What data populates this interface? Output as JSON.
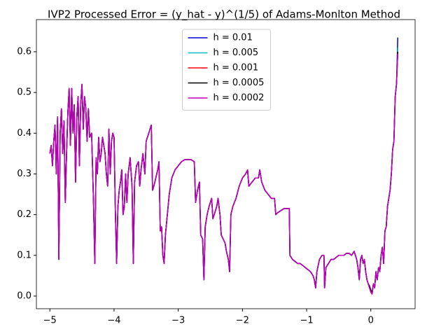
{
  "chart_data": {
    "type": "line",
    "title": "IVP2 Processed Error = (y_hat - y)^(1/5) of Adams-Monlton Method",
    "x": [
      -5.0,
      -4.98,
      -4.96,
      -4.94,
      -4.92,
      -4.9,
      -4.88,
      -4.86,
      -4.84,
      -4.82,
      -4.8,
      -4.78,
      -4.76,
      -4.74,
      -4.72,
      -4.7,
      -4.68,
      -4.66,
      -4.64,
      -4.62,
      -4.6,
      -4.58,
      -4.56,
      -4.54,
      -4.52,
      -4.5,
      -4.48,
      -4.46,
      -4.44,
      -4.42,
      -4.4,
      -4.38,
      -4.35,
      -4.32,
      -4.3,
      -4.28,
      -4.26,
      -4.24,
      -4.22,
      -4.2,
      -4.18,
      -4.16,
      -4.14,
      -4.12,
      -4.1,
      -4.08,
      -4.06,
      -4.04,
      -4.02,
      -4.0,
      -3.98,
      -3.96,
      -3.94,
      -3.92,
      -3.9,
      -3.88,
      -3.86,
      -3.84,
      -3.82,
      -3.8,
      -3.78,
      -3.75,
      -3.72,
      -3.7,
      -3.68,
      -3.65,
      -3.62,
      -3.6,
      -3.58,
      -3.55,
      -3.52,
      -3.5,
      -3.46,
      -3.42,
      -3.4,
      -3.38,
      -3.35,
      -3.32,
      -3.3,
      -3.28,
      -3.26,
      -3.24,
      -3.22,
      -3.2,
      -3.17,
      -3.14,
      -3.1,
      -3.05,
      -3.0,
      -2.95,
      -2.9,
      -2.8,
      -2.75,
      -2.73,
      -2.7,
      -2.67,
      -2.65,
      -2.62,
      -2.6,
      -2.58,
      -2.55,
      -2.52,
      -2.48,
      -2.46,
      -2.44,
      -2.4,
      -2.38,
      -2.35,
      -2.33,
      -2.3,
      -2.27,
      -2.25,
      -2.22,
      -2.2,
      -2.18,
      -2.15,
      -2.1,
      -2.05,
      -2.0,
      -1.95,
      -1.92,
      -1.9,
      -1.85,
      -1.8,
      -1.75,
      -1.73,
      -1.7,
      -1.65,
      -1.6,
      -1.55,
      -1.5,
      -1.48,
      -1.45,
      -1.4,
      -1.35,
      -1.3,
      -1.27,
      -1.26,
      -1.22,
      -1.18,
      -1.14,
      -1.1,
      -1.06,
      -1.02,
      -0.98,
      -0.94,
      -0.9,
      -0.88,
      -0.86,
      -0.84,
      -0.8,
      -0.76,
      -0.73,
      -0.72,
      -0.7,
      -0.66,
      -0.62,
      -0.58,
      -0.54,
      -0.5,
      -0.46,
      -0.42,
      -0.38,
      -0.34,
      -0.3,
      -0.26,
      -0.22,
      -0.2,
      -0.18,
      -0.16,
      -0.14,
      -0.12,
      -0.1,
      -0.08,
      -0.06,
      -0.04,
      -0.02,
      0.0,
      0.02,
      0.04,
      0.06,
      0.08,
      0.1,
      0.12,
      0.14,
      0.16,
      0.18,
      0.2,
      0.22,
      0.24,
      0.26,
      0.28,
      0.3,
      0.32,
      0.34,
      0.36,
      0.38,
      0.4,
      0.42
    ],
    "series": [
      {
        "name": "h = 0.01",
        "color": "#0000cc",
        "values": [
          0.35,
          0.37,
          0.32,
          0.38,
          0.42,
          0.3,
          0.44,
          0.09,
          0.4,
          0.46,
          0.35,
          0.43,
          0.23,
          0.35,
          0.45,
          0.51,
          0.37,
          0.51,
          0.4,
          0.47,
          0.28,
          0.44,
          0.49,
          0.32,
          0.47,
          0.52,
          0.41,
          0.49,
          0.46,
          0.38,
          0.46,
          0.39,
          0.4,
          0.23,
          0.08,
          0.34,
          0.3,
          0.39,
          0.33,
          0.35,
          0.39,
          0.37,
          0.35,
          0.3,
          0.27,
          0.41,
          0.3,
          0.38,
          0.4,
          0.39,
          0.21,
          0.08,
          0.22,
          0.26,
          0.28,
          0.31,
          0.2,
          0.22,
          0.3,
          0.23,
          0.3,
          0.34,
          0.27,
          0.08,
          0.28,
          0.32,
          0.33,
          0.27,
          0.31,
          0.35,
          0.3,
          0.38,
          0.4,
          0.42,
          0.26,
          0.27,
          0.29,
          0.31,
          0.33,
          0.16,
          0.17,
          0.1,
          0.08,
          0.15,
          0.2,
          0.25,
          0.29,
          0.31,
          0.32,
          0.33,
          0.335,
          0.335,
          0.33,
          0.23,
          0.26,
          0.28,
          0.15,
          0.14,
          0.04,
          0.17,
          0.2,
          0.22,
          0.24,
          0.19,
          0.2,
          0.22,
          0.24,
          0.2,
          0.15,
          0.14,
          0.13,
          0.11,
          0.09,
          0.06,
          0.2,
          0.22,
          0.24,
          0.27,
          0.29,
          0.3,
          0.31,
          0.27,
          0.28,
          0.29,
          0.29,
          0.31,
          0.28,
          0.26,
          0.25,
          0.24,
          0.24,
          0.2,
          0.205,
          0.21,
          0.215,
          0.215,
          0.215,
          0.1,
          0.09,
          0.085,
          0.08,
          0.08,
          0.075,
          0.07,
          0.065,
          0.06,
          0.05,
          0.04,
          0.02,
          0.06,
          0.09,
          0.1,
          0.1,
          0.02,
          0.07,
          0.08,
          0.09,
          0.09,
          0.095,
          0.1,
          0.1,
          0.1,
          0.105,
          0.105,
          0.1,
          0.11,
          0.09,
          0.07,
          0.04,
          0.09,
          0.1,
          0.08,
          0.09,
          0.06,
          0.04,
          0.03,
          0.02,
          0.01,
          0.005,
          0.03,
          0.02,
          0.06,
          0.04,
          0.07,
          0.06,
          0.1,
          0.12,
          0.08,
          0.16,
          0.17,
          0.22,
          0.24,
          0.26,
          0.3,
          0.36,
          0.38,
          0.49,
          0.52,
          0.635
        ]
      },
      {
        "name": "h = 0.005",
        "color": "#00bfbf",
        "values": [
          0.35,
          0.37,
          0.32,
          0.38,
          0.42,
          0.3,
          0.44,
          0.09,
          0.4,
          0.46,
          0.35,
          0.43,
          0.23,
          0.35,
          0.45,
          0.51,
          0.37,
          0.51,
          0.4,
          0.47,
          0.28,
          0.44,
          0.49,
          0.32,
          0.47,
          0.52,
          0.41,
          0.49,
          0.46,
          0.38,
          0.46,
          0.39,
          0.4,
          0.23,
          0.08,
          0.34,
          0.3,
          0.39,
          0.33,
          0.35,
          0.39,
          0.37,
          0.35,
          0.3,
          0.27,
          0.41,
          0.3,
          0.38,
          0.4,
          0.39,
          0.21,
          0.08,
          0.22,
          0.26,
          0.28,
          0.31,
          0.2,
          0.22,
          0.3,
          0.23,
          0.3,
          0.34,
          0.27,
          0.08,
          0.28,
          0.32,
          0.33,
          0.27,
          0.31,
          0.35,
          0.3,
          0.38,
          0.4,
          0.42,
          0.26,
          0.27,
          0.29,
          0.31,
          0.33,
          0.16,
          0.17,
          0.1,
          0.08,
          0.15,
          0.2,
          0.25,
          0.29,
          0.31,
          0.32,
          0.33,
          0.335,
          0.335,
          0.33,
          0.23,
          0.26,
          0.28,
          0.15,
          0.14,
          0.04,
          0.17,
          0.2,
          0.22,
          0.24,
          0.19,
          0.2,
          0.22,
          0.24,
          0.2,
          0.15,
          0.14,
          0.13,
          0.11,
          0.09,
          0.06,
          0.2,
          0.22,
          0.24,
          0.27,
          0.29,
          0.3,
          0.31,
          0.27,
          0.28,
          0.29,
          0.29,
          0.31,
          0.28,
          0.26,
          0.25,
          0.24,
          0.24,
          0.2,
          0.205,
          0.21,
          0.215,
          0.215,
          0.215,
          0.1,
          0.09,
          0.085,
          0.08,
          0.08,
          0.075,
          0.07,
          0.065,
          0.06,
          0.05,
          0.04,
          0.02,
          0.06,
          0.09,
          0.1,
          0.1,
          0.02,
          0.07,
          0.08,
          0.09,
          0.09,
          0.095,
          0.1,
          0.1,
          0.1,
          0.105,
          0.105,
          0.1,
          0.11,
          0.09,
          0.07,
          0.04,
          0.09,
          0.1,
          0.08,
          0.09,
          0.06,
          0.04,
          0.03,
          0.02,
          0.01,
          0.005,
          0.03,
          0.02,
          0.06,
          0.04,
          0.07,
          0.06,
          0.1,
          0.12,
          0.08,
          0.16,
          0.17,
          0.22,
          0.24,
          0.26,
          0.3,
          0.36,
          0.38,
          0.49,
          0.52,
          0.61
        ]
      },
      {
        "name": "h = 0.001",
        "color": "#ff0000",
        "values": [
          0.35,
          0.37,
          0.32,
          0.38,
          0.42,
          0.3,
          0.44,
          0.09,
          0.4,
          0.46,
          0.35,
          0.43,
          0.23,
          0.35,
          0.45,
          0.51,
          0.37,
          0.51,
          0.4,
          0.47,
          0.28,
          0.44,
          0.49,
          0.32,
          0.47,
          0.52,
          0.41,
          0.49,
          0.46,
          0.38,
          0.46,
          0.39,
          0.4,
          0.23,
          0.08,
          0.34,
          0.3,
          0.39,
          0.33,
          0.35,
          0.39,
          0.37,
          0.35,
          0.3,
          0.27,
          0.41,
          0.3,
          0.38,
          0.4,
          0.39,
          0.21,
          0.08,
          0.22,
          0.26,
          0.28,
          0.31,
          0.2,
          0.22,
          0.3,
          0.23,
          0.3,
          0.34,
          0.27,
          0.08,
          0.28,
          0.32,
          0.33,
          0.27,
          0.31,
          0.35,
          0.3,
          0.38,
          0.4,
          0.42,
          0.26,
          0.27,
          0.29,
          0.31,
          0.33,
          0.16,
          0.17,
          0.1,
          0.08,
          0.15,
          0.2,
          0.25,
          0.29,
          0.31,
          0.32,
          0.33,
          0.335,
          0.335,
          0.33,
          0.23,
          0.26,
          0.28,
          0.15,
          0.14,
          0.04,
          0.17,
          0.2,
          0.22,
          0.24,
          0.19,
          0.2,
          0.22,
          0.24,
          0.2,
          0.15,
          0.14,
          0.13,
          0.11,
          0.09,
          0.06,
          0.2,
          0.22,
          0.24,
          0.27,
          0.29,
          0.3,
          0.31,
          0.27,
          0.28,
          0.29,
          0.29,
          0.31,
          0.28,
          0.26,
          0.25,
          0.24,
          0.24,
          0.2,
          0.205,
          0.21,
          0.215,
          0.215,
          0.215,
          0.1,
          0.09,
          0.085,
          0.08,
          0.08,
          0.075,
          0.07,
          0.065,
          0.06,
          0.05,
          0.04,
          0.02,
          0.06,
          0.09,
          0.1,
          0.1,
          0.02,
          0.07,
          0.08,
          0.09,
          0.09,
          0.095,
          0.1,
          0.1,
          0.1,
          0.105,
          0.105,
          0.1,
          0.11,
          0.09,
          0.07,
          0.04,
          0.09,
          0.1,
          0.08,
          0.09,
          0.06,
          0.04,
          0.03,
          0.02,
          0.01,
          0.005,
          0.03,
          0.02,
          0.06,
          0.04,
          0.07,
          0.06,
          0.1,
          0.12,
          0.08,
          0.16,
          0.17,
          0.22,
          0.24,
          0.26,
          0.3,
          0.36,
          0.38,
          0.49,
          0.52,
          0.6
        ]
      },
      {
        "name": "h = 0.0005",
        "color": "#000000",
        "values": [
          0.35,
          0.37,
          0.32,
          0.38,
          0.42,
          0.3,
          0.44,
          0.09,
          0.4,
          0.46,
          0.35,
          0.43,
          0.23,
          0.35,
          0.45,
          0.51,
          0.37,
          0.51,
          0.4,
          0.47,
          0.28,
          0.44,
          0.49,
          0.32,
          0.47,
          0.52,
          0.41,
          0.49,
          0.46,
          0.38,
          0.46,
          0.39,
          0.4,
          0.23,
          0.08,
          0.34,
          0.3,
          0.39,
          0.33,
          0.35,
          0.39,
          0.37,
          0.35,
          0.3,
          0.27,
          0.41,
          0.3,
          0.38,
          0.4,
          0.39,
          0.21,
          0.08,
          0.22,
          0.26,
          0.28,
          0.31,
          0.2,
          0.22,
          0.3,
          0.23,
          0.3,
          0.34,
          0.27,
          0.08,
          0.28,
          0.32,
          0.33,
          0.27,
          0.31,
          0.35,
          0.3,
          0.38,
          0.4,
          0.42,
          0.26,
          0.27,
          0.29,
          0.31,
          0.33,
          0.16,
          0.17,
          0.1,
          0.08,
          0.15,
          0.2,
          0.25,
          0.29,
          0.31,
          0.32,
          0.33,
          0.335,
          0.335,
          0.33,
          0.23,
          0.26,
          0.28,
          0.15,
          0.14,
          0.04,
          0.17,
          0.2,
          0.22,
          0.24,
          0.19,
          0.2,
          0.22,
          0.24,
          0.2,
          0.15,
          0.14,
          0.13,
          0.11,
          0.09,
          0.06,
          0.2,
          0.22,
          0.24,
          0.27,
          0.29,
          0.3,
          0.31,
          0.27,
          0.28,
          0.29,
          0.29,
          0.31,
          0.28,
          0.26,
          0.25,
          0.24,
          0.24,
          0.2,
          0.205,
          0.21,
          0.215,
          0.215,
          0.215,
          0.1,
          0.09,
          0.085,
          0.08,
          0.08,
          0.075,
          0.07,
          0.065,
          0.06,
          0.05,
          0.04,
          0.02,
          0.06,
          0.09,
          0.1,
          0.1,
          0.02,
          0.07,
          0.08,
          0.09,
          0.09,
          0.095,
          0.1,
          0.1,
          0.1,
          0.105,
          0.105,
          0.1,
          0.11,
          0.09,
          0.07,
          0.04,
          0.09,
          0.1,
          0.08,
          0.09,
          0.06,
          0.04,
          0.03,
          0.025,
          0.015,
          0.01,
          0.03,
          0.02,
          0.06,
          0.04,
          0.07,
          0.06,
          0.1,
          0.12,
          0.08,
          0.16,
          0.17,
          0.22,
          0.24,
          0.26,
          0.3,
          0.36,
          0.38,
          0.49,
          0.52,
          0.6
        ]
      },
      {
        "name": "h = 0.0002",
        "color": "#bf00bf",
        "values": [
          0.35,
          0.37,
          0.32,
          0.38,
          0.42,
          0.3,
          0.44,
          0.09,
          0.4,
          0.46,
          0.35,
          0.43,
          0.23,
          0.35,
          0.45,
          0.51,
          0.37,
          0.51,
          0.4,
          0.47,
          0.28,
          0.44,
          0.49,
          0.32,
          0.47,
          0.52,
          0.41,
          0.49,
          0.46,
          0.38,
          0.46,
          0.39,
          0.4,
          0.23,
          0.08,
          0.34,
          0.3,
          0.39,
          0.33,
          0.35,
          0.39,
          0.37,
          0.35,
          0.3,
          0.27,
          0.41,
          0.3,
          0.38,
          0.4,
          0.39,
          0.21,
          0.08,
          0.22,
          0.26,
          0.28,
          0.31,
          0.2,
          0.22,
          0.3,
          0.23,
          0.3,
          0.34,
          0.27,
          0.08,
          0.28,
          0.32,
          0.33,
          0.27,
          0.31,
          0.35,
          0.3,
          0.38,
          0.4,
          0.42,
          0.26,
          0.27,
          0.29,
          0.31,
          0.33,
          0.16,
          0.17,
          0.1,
          0.08,
          0.15,
          0.2,
          0.25,
          0.29,
          0.31,
          0.32,
          0.33,
          0.335,
          0.335,
          0.33,
          0.23,
          0.26,
          0.28,
          0.15,
          0.14,
          0.04,
          0.17,
          0.2,
          0.22,
          0.24,
          0.19,
          0.2,
          0.22,
          0.24,
          0.2,
          0.15,
          0.14,
          0.13,
          0.11,
          0.09,
          0.06,
          0.2,
          0.22,
          0.24,
          0.27,
          0.29,
          0.3,
          0.31,
          0.27,
          0.28,
          0.29,
          0.29,
          0.31,
          0.28,
          0.26,
          0.25,
          0.24,
          0.24,
          0.2,
          0.205,
          0.21,
          0.215,
          0.215,
          0.215,
          0.1,
          0.09,
          0.085,
          0.08,
          0.08,
          0.075,
          0.07,
          0.065,
          0.06,
          0.05,
          0.04,
          0.02,
          0.06,
          0.09,
          0.1,
          0.1,
          0.02,
          0.07,
          0.08,
          0.09,
          0.09,
          0.095,
          0.1,
          0.1,
          0.1,
          0.105,
          0.105,
          0.1,
          0.11,
          0.09,
          0.07,
          0.04,
          0.09,
          0.1,
          0.08,
          0.09,
          0.06,
          0.04,
          0.03,
          0.02,
          0.01,
          0.005,
          0.03,
          0.02,
          0.06,
          0.04,
          0.07,
          0.06,
          0.1,
          0.12,
          0.08,
          0.16,
          0.17,
          0.22,
          0.24,
          0.26,
          0.3,
          0.36,
          0.38,
          0.49,
          0.52,
          0.595
        ]
      }
    ],
    "xlim": [
      -5.21,
      0.69
    ],
    "ylim": [
      -0.031,
      0.679
    ],
    "xticks": [
      {
        "value": -5,
        "label": "−5"
      },
      {
        "value": -4,
        "label": "−4"
      },
      {
        "value": -3,
        "label": "−3"
      },
      {
        "value": -2,
        "label": "−2"
      },
      {
        "value": -1,
        "label": "−1"
      },
      0
    ],
    "yticks": [
      {
        "value": 0,
        "label": "0.0"
      },
      0.1,
      0.2,
      0.3,
      0.4,
      0.5,
      0.6
    ],
    "legend": "upper center"
  }
}
